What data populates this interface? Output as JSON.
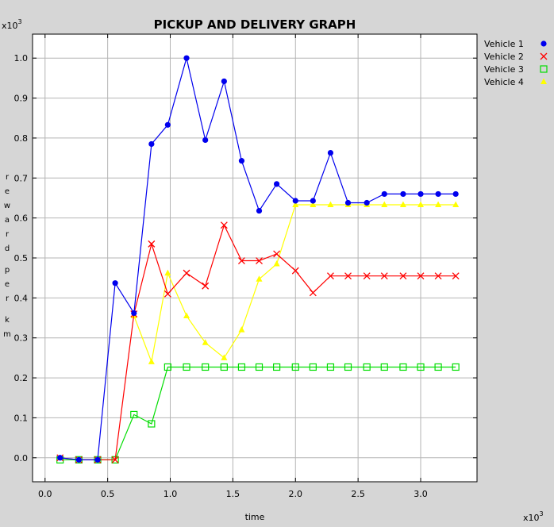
{
  "chart_data": {
    "type": "line",
    "title": "PICKUP AND DELIVERY GRAPH",
    "xlabel": "time",
    "ylabel": "reward per km",
    "x_multiplier": "x10",
    "y_multiplier": "x10",
    "multiplier_exponent": "3",
    "xlim": [
      -0.1,
      3.45
    ],
    "ylim": [
      -0.06,
      1.06
    ],
    "x_ticks": [
      0.0,
      0.5,
      1.0,
      1.5,
      2.0,
      2.5,
      3.0
    ],
    "x_tick_labels": [
      "0.0",
      "0.5",
      "1.0",
      "1.5",
      "2.0",
      "2.5",
      "3.0"
    ],
    "y_ticks": [
      0.0,
      0.1,
      0.2,
      0.3,
      0.4,
      0.5,
      0.6,
      0.7,
      0.8,
      0.9,
      1.0
    ],
    "y_tick_labels": [
      "0.0",
      "0.1",
      "0.2",
      "0.3",
      "0.4",
      "0.5",
      "0.6",
      "0.7",
      "0.8",
      "0.9",
      "1.0"
    ],
    "grid": true,
    "legend_position": "top-right, outside plot",
    "series": [
      {
        "name": "Vehicle 1",
        "color": "#0000ee",
        "marker": "circle",
        "x": [
          0.12,
          0.27,
          0.42,
          0.56,
          0.71,
          0.85,
          0.98,
          1.13,
          1.28,
          1.43,
          1.57,
          1.71,
          1.85,
          2.0,
          2.14,
          2.28,
          2.42,
          2.57,
          2.71,
          2.86,
          3.0,
          3.14,
          3.28
        ],
        "y": [
          0.0,
          -0.005,
          -0.005,
          0.437,
          0.362,
          0.785,
          0.833,
          1.0,
          0.795,
          0.942,
          0.743,
          0.618,
          0.685,
          0.643,
          0.643,
          0.763,
          0.638,
          0.638,
          0.66,
          0.66,
          0.66,
          0.66,
          0.66
        ]
      },
      {
        "name": "Vehicle 2",
        "color": "#ff0000",
        "marker": "x",
        "x": [
          0.12,
          0.27,
          0.42,
          0.56,
          0.71,
          0.85,
          0.98,
          1.13,
          1.28,
          1.43,
          1.57,
          1.71,
          1.85,
          2.0,
          2.14,
          2.28,
          2.42,
          2.57,
          2.71,
          2.86,
          3.0,
          3.14,
          3.28
        ],
        "y": [
          0.0,
          -0.005,
          -0.005,
          -0.005,
          0.36,
          0.535,
          0.41,
          0.462,
          0.43,
          0.582,
          0.493,
          0.493,
          0.51,
          0.468,
          0.413,
          0.455,
          0.455,
          0.455,
          0.455,
          0.455,
          0.455,
          0.455,
          0.455
        ]
      },
      {
        "name": "Vehicle 3",
        "color": "#00dd00",
        "marker": "square",
        "x": [
          0.12,
          0.27,
          0.42,
          0.56,
          0.71,
          0.85,
          0.98,
          1.13,
          1.28,
          1.43,
          1.57,
          1.71,
          1.85,
          2.0,
          2.14,
          2.28,
          2.42,
          2.57,
          2.71,
          2.86,
          3.0,
          3.14,
          3.28
        ],
        "y": [
          -0.005,
          -0.005,
          -0.005,
          -0.005,
          0.108,
          0.085,
          0.227,
          0.227,
          0.227,
          0.227,
          0.227,
          0.227,
          0.227,
          0.227,
          0.227,
          0.227,
          0.227,
          0.227,
          0.227,
          0.227,
          0.227,
          0.227,
          0.227
        ]
      },
      {
        "name": "Vehicle 4",
        "color": "#ffff00",
        "marker": "triangle",
        "x": [
          0.71,
          0.85,
          0.98,
          1.13,
          1.28,
          1.43,
          1.57,
          1.71,
          1.85,
          2.0,
          2.14,
          2.28,
          2.42,
          2.57,
          2.71,
          2.86,
          3.0,
          3.14,
          3.28
        ],
        "y": [
          0.355,
          0.24,
          0.462,
          0.355,
          0.288,
          0.25,
          0.32,
          0.447,
          0.485,
          0.633,
          0.633,
          0.633,
          0.633,
          0.633,
          0.633,
          0.633,
          0.633,
          0.633,
          0.633
        ]
      }
    ]
  }
}
